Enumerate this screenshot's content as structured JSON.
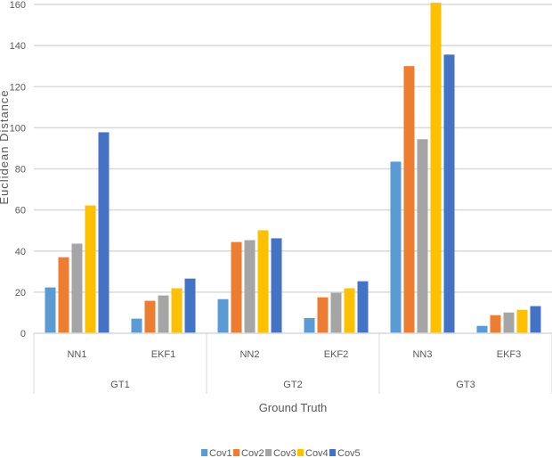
{
  "chart_data": {
    "type": "bar",
    "title": "",
    "xlabel": "Ground Truth",
    "ylabel": "Euclidean Distance",
    "ylim": [
      0,
      160
    ],
    "yticks": [
      "0",
      "20",
      "40",
      "60",
      "80",
      "100",
      "120",
      "140",
      "160"
    ],
    "grid": true,
    "legend_position": "bottom",
    "groups": [
      {
        "label": "GT1",
        "categories": [
          "NN1",
          "EKF1"
        ]
      },
      {
        "label": "GT2",
        "categories": [
          "NN2",
          "EKF2"
        ]
      },
      {
        "label": "GT3",
        "categories": [
          "NN3",
          "EKF3"
        ]
      }
    ],
    "categories": [
      "NN1",
      "EKF1",
      "NN2",
      "EKF2",
      "NN3",
      "EKF3"
    ],
    "series": [
      {
        "name": "Cov1",
        "color": "#5B9BD5",
        "values": [
          22.3,
          7.1,
          16.6,
          7.4,
          83.5,
          3.6
        ]
      },
      {
        "name": "Cov2",
        "color": "#ED7D31",
        "values": [
          37.0,
          15.8,
          44.4,
          17.5,
          130.0,
          8.8
        ]
      },
      {
        "name": "Cov3",
        "color": "#A5A5A5",
        "values": [
          43.6,
          18.4,
          45.3,
          19.7,
          94.4,
          10.1
        ]
      },
      {
        "name": "Cov4",
        "color": "#FFC000",
        "values": [
          62.2,
          21.9,
          50.1,
          21.9,
          160.8,
          11.4
        ]
      },
      {
        "name": "Cov5",
        "color": "#4472C4",
        "values": [
          97.8,
          26.6,
          46.2,
          25.3,
          135.6,
          13.2
        ]
      }
    ]
  }
}
